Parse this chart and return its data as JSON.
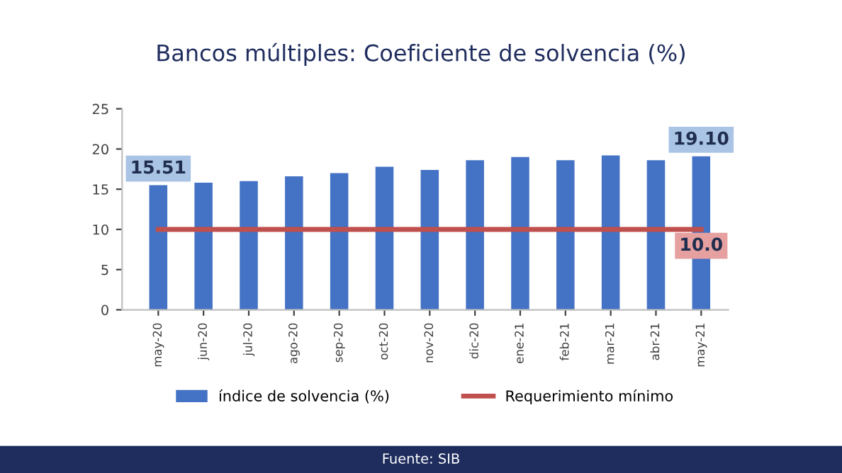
{
  "chart_data": {
    "type": "bar",
    "title": "Bancos múltiples: Coeficiente de solvencia (%)",
    "categories": [
      "may-20",
      "jun-20",
      "jul-20",
      "ago-20",
      "sep-20",
      "oct-20",
      "nov-20",
      "dic-20",
      "ene-21",
      "feb-21",
      "mar-21",
      "abr-21",
      "may-21"
    ],
    "series": [
      {
        "name": "índice de solvencia (%)",
        "color": "#4472c4",
        "values": [
          15.51,
          15.8,
          16.0,
          16.6,
          17.0,
          17.8,
          17.4,
          18.6,
          19.0,
          18.6,
          19.2,
          18.6,
          19.1
        ],
        "value_labels": [
          "15.51",
          null,
          null,
          null,
          null,
          null,
          null,
          null,
          null,
          null,
          null,
          null,
          "19.10"
        ]
      },
      {
        "name": "Requerimiento mínimo",
        "type": "line",
        "color": "#c0504d",
        "values": [
          10,
          10,
          10,
          10,
          10,
          10,
          10,
          10,
          10,
          10,
          10,
          10,
          10
        ],
        "value_labels": [
          null,
          null,
          null,
          null,
          null,
          null,
          null,
          null,
          null,
          null,
          null,
          null,
          "10.0"
        ]
      }
    ],
    "ylim": [
      0,
      25
    ],
    "yticks": [
      0,
      5,
      10,
      15,
      20,
      25
    ],
    "grid": false,
    "legend": "bottom",
    "annotations": [
      "Fuente: SIB"
    ]
  }
}
